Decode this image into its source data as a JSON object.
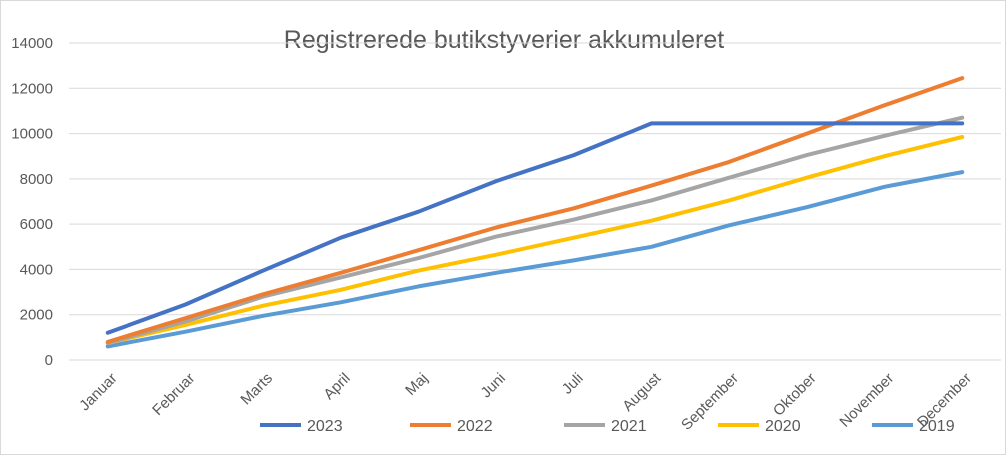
{
  "chart_data": {
    "type": "line",
    "title": "Registrerede butikstyverier akkumuleret",
    "xlabel": "",
    "ylabel": "",
    "ylim": [
      0,
      14000
    ],
    "yticks": [
      0,
      2000,
      4000,
      6000,
      8000,
      10000,
      12000,
      14000
    ],
    "categories": [
      "Januar",
      "Februar",
      "Marts",
      "April",
      "Maj",
      "Juni",
      "Juli",
      "August",
      "September",
      "Oktober",
      "November",
      "December"
    ],
    "grid": true,
    "legend_position": "bottom",
    "series": [
      {
        "name": "2023",
        "color": "#4472c4",
        "values": [
          1200,
          2450,
          3950,
          5400,
          6550,
          7900,
          9050,
          10450,
          10450,
          10450,
          10450,
          10450
        ]
      },
      {
        "name": "2022",
        "color": "#ed7d31",
        "values": [
          800,
          1850,
          2900,
          3850,
          4850,
          5850,
          6700,
          7700,
          8750,
          10000,
          11250,
          12450
        ]
      },
      {
        "name": "2021",
        "color": "#a5a5a5",
        "values": [
          750,
          1700,
          2800,
          3650,
          4500,
          5450,
          6200,
          7050,
          8050,
          9050,
          9900,
          10700
        ]
      },
      {
        "name": "2020",
        "color": "#ffc000",
        "values": [
          750,
          1550,
          2400,
          3100,
          3950,
          4650,
          5400,
          6150,
          7050,
          8050,
          9000,
          9850
        ]
      },
      {
        "name": "2019",
        "color": "#5b9bd5",
        "values": [
          600,
          1250,
          1950,
          2550,
          3250,
          3850,
          4400,
          5000,
          5950,
          6750,
          7650,
          8300
        ]
      }
    ]
  }
}
